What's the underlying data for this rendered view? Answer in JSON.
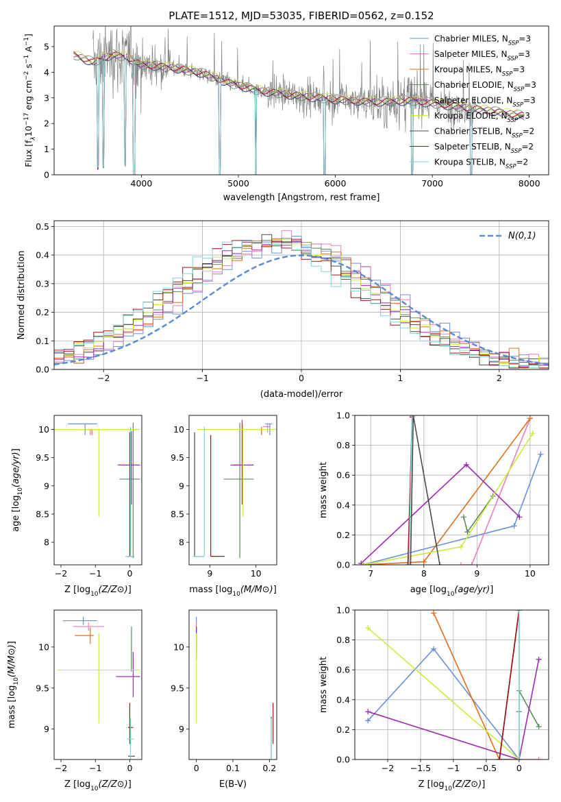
{
  "title": "PLATE=1512, MJD=53035, FIBERID=0562, z=0.152",
  "series_names": [
    "Chabrier MILES, N_SSP=3",
    "Salpeter MILES, N_SSP=3",
    "Kroupa MILES, N_SSP=3",
    "Chabrier ELODIE, N_SSP=3",
    "Salpeter ELODIE, N_SSP=3",
    "Kroupa ELODIE, N_SSP=3",
    "Chabrier STELIB, N_SSP=2",
    "Salpeter STELIB, N_SSP=2",
    "Kroupa STELIB, N_SSP=2"
  ],
  "colors": [
    "#6a8fd6",
    "#e77fbf",
    "#e06f1c",
    "#5c8a5c",
    "#9a2ab0",
    "#cdea3a",
    "#4a4a4a",
    "#a01010",
    "#7fd5d5"
  ],
  "chart_data": [
    {
      "panel": "spectrum",
      "type": "line",
      "title": "PLATE=1512, MJD=53035, FIBERID=0562, z=0.152",
      "xlabel": "wavelength [Angstrom, rest frame]",
      "ylabel": "Flux [f_λ 10^-17 erg cm^-2 s^-1 A^-1]",
      "xlim": [
        3100,
        8200
      ],
      "ylim": [
        0,
        5.8
      ],
      "xticks": [
        4000,
        5000,
        6000,
        7000,
        8000
      ],
      "yticks": [
        0,
        1,
        2,
        3,
        4,
        5
      ],
      "legend": "top-right",
      "grid": false,
      "observed_color": "#808080",
      "observed_range": [
        3500,
        7450
      ],
      "model_range": [
        3300,
        7950
      ],
      "model_continuum": [
        [
          3300,
          4.7
        ],
        [
          3500,
          4.4
        ],
        [
          3700,
          4.7
        ],
        [
          3850,
          4.6
        ],
        [
          4000,
          4.3
        ],
        [
          4300,
          4.2
        ],
        [
          4600,
          4.0
        ],
        [
          4900,
          3.6
        ],
        [
          5200,
          3.3
        ],
        [
          5600,
          3.1
        ],
        [
          6000,
          2.95
        ],
        [
          6400,
          2.85
        ],
        [
          6800,
          2.9
        ],
        [
          7200,
          2.7
        ],
        [
          7600,
          2.5
        ],
        [
          7950,
          2.3
        ]
      ],
      "absorption_features": [
        3550,
        3610,
        3830,
        3920,
        3930,
        4810,
        5180,
        5890,
        6790,
        7400
      ]
    },
    {
      "panel": "residuals",
      "type": "histogram",
      "xlabel": "(data-model)/error",
      "ylabel": "Normed distribution",
      "xlim": [
        -2.5,
        2.5
      ],
      "ylim": [
        0,
        0.52
      ],
      "xticks": [
        -2,
        -1,
        0,
        1,
        2
      ],
      "yticks": [
        0.0,
        0.1,
        0.2,
        0.3,
        0.4,
        0.5
      ],
      "grid": true,
      "legend": "top-right",
      "reference_label": "N(0,1)",
      "reference_color": "#5b8bd6",
      "bin_width": 0.1
    },
    {
      "panel": "age_vs_Z",
      "type": "errorbar",
      "xlabel": "Z [log10(Z/Z_sun)]",
      "ylabel": "age [log10(age/yr)]",
      "xlim": [
        -2.2,
        0.35
      ],
      "ylim": [
        7.6,
        10.25
      ],
      "xticks": [
        -2,
        -1,
        0
      ],
      "yticks": [
        8.0,
        8.5,
        9.0,
        9.5,
        10.0
      ],
      "points": [
        {
          "x": -1.3,
          "xerr": [
            0.5,
            0.35
          ],
          "y": 10.1,
          "yerr": [
            0.2,
            0.0
          ]
        },
        {
          "x": -1.15,
          "xerr": [
            0.3,
            0.1
          ],
          "y": 10.0,
          "yerr": [
            0.1,
            0.0
          ]
        },
        {
          "x": -1.1,
          "xerr": [
            1.2,
            1.3
          ],
          "y": 10.0,
          "yerr": [
            0.1,
            0.0
          ]
        },
        {
          "x": 0.1,
          "xerr": [
            0.4,
            0.2
          ],
          "y": 9.12,
          "yerr": [
            1.4,
            1.0
          ]
        },
        {
          "x": 0.05,
          "xerr": [
            0.4,
            0.25
          ],
          "y": 9.37,
          "yerr": [
            0.7,
            0.6
          ]
        },
        {
          "x": -0.9,
          "xerr": [
            1.3,
            1.2
          ],
          "y": 10.0,
          "yerr": [
            1.55,
            0.0
          ]
        },
        {
          "x": 0.02,
          "xerr": [
            0.1,
            0.1
          ],
          "y": 7.75,
          "yerr": [
            0.0,
            2.2
          ]
        },
        {
          "x": 0.0,
          "xerr": [
            0.05,
            0.05
          ],
          "y": 7.75,
          "yerr": [
            0.0,
            2.2
          ]
        },
        {
          "x": 0.02,
          "xerr": [
            0.15,
            0.12
          ],
          "y": 7.75,
          "yerr": [
            0.0,
            2.3
          ]
        }
      ]
    },
    {
      "panel": "age_vs_mass",
      "type": "errorbar",
      "xlabel": "mass [log10(M/M_sun)]",
      "ylabel": "",
      "xlim": [
        8.55,
        10.45
      ],
      "ylim": [
        7.6,
        10.25
      ],
      "xticks": [
        9,
        10
      ],
      "yticks": [
        8.0,
        8.5,
        9.0,
        9.5,
        10.0
      ],
      "points": [
        {
          "x": 10.3,
          "xerr": [
            0.1,
            0.05
          ],
          "y": 10.1,
          "yerr": [
            0.2,
            0.0
          ]
        },
        {
          "x": 10.25,
          "xerr": [
            0.1,
            0.05
          ],
          "y": 10.05,
          "yerr": [
            0.1,
            0.05
          ]
        },
        {
          "x": 10.12,
          "xerr": [
            0.1,
            0.05
          ],
          "y": 10.0,
          "yerr": [
            0.1,
            0.05
          ]
        },
        {
          "x": 9.65,
          "xerr": [
            0.35,
            0.3
          ],
          "y": 9.12,
          "yerr": [
            1.4,
            1.0
          ]
        },
        {
          "x": 9.7,
          "xerr": [
            0.25,
            0.25
          ],
          "y": 9.37,
          "yerr": [
            0.7,
            0.8
          ]
        },
        {
          "x": 9.72,
          "xerr": [
            1.0,
            1.0
          ],
          "y": 10.0,
          "yerr": [
            1.55,
            0.1
          ]
        },
        {
          "x": 8.67,
          "xerr": [
            0.0,
            0.2
          ],
          "y": 7.75,
          "yerr": [
            0.0,
            2.2
          ]
        },
        {
          "x": 9.02,
          "xerr": [
            0.0,
            0.3
          ],
          "y": 7.75,
          "yerr": [
            0.0,
            2.15
          ]
        },
        {
          "x": 8.88,
          "xerr": [
            0.25,
            0.0
          ],
          "y": 7.75,
          "yerr": [
            0.0,
            2.3
          ]
        }
      ]
    },
    {
      "panel": "weight_vs_age",
      "type": "line",
      "xlabel": "age [log10(age/yr)]",
      "ylabel": "mass weight",
      "xlim": [
        6.7,
        10.35
      ],
      "ylim": [
        0,
        1.0
      ],
      "xticks": [
        7,
        8,
        9,
        10
      ],
      "yticks": [
        0.0,
        0.2,
        0.4,
        0.6,
        0.8,
        1.0
      ],
      "grid": true,
      "series": [
        {
          "x": [
            6.85,
            9.7,
            10.2
          ],
          "y": [
            0.0,
            0.26,
            0.74
          ]
        },
        {
          "x": [
            8.7,
            8.9,
            10.0
          ],
          "y": [
            0.0,
            0.0,
            0.98
          ]
        },
        {
          "x": [
            6.85,
            8.0,
            10.0
          ],
          "y": [
            0.0,
            0.02,
            0.98
          ]
        },
        {
          "x": [
            8.75,
            8.82,
            9.3
          ],
          "y": [
            0.32,
            0.22,
            0.46
          ]
        },
        {
          "x": [
            6.82,
            8.8,
            9.8
          ],
          "y": [
            0.01,
            0.67,
            0.32
          ]
        },
        {
          "x": [
            6.85,
            8.7,
            10.05
          ],
          "y": [
            0.0,
            0.12,
            0.88
          ]
        },
        {
          "x": [
            7.75,
            7.8,
            8.3
          ],
          "y": [
            0.0,
            1.0,
            0.0
          ]
        },
        {
          "x": [
            7.7,
            7.78,
            7.8
          ],
          "y": [
            0.0,
            0.99,
            1.0
          ]
        },
        {
          "x": [
            7.72,
            7.78,
            7.82
          ],
          "y": [
            0.0,
            1.0,
            1.0
          ]
        }
      ]
    },
    {
      "panel": "mass_vs_Z",
      "type": "errorbar",
      "xlabel": "Z [log10(Z/Z_sun)]",
      "ylabel": "mass [log10(M/M_sun)]",
      "xlim": [
        -2.2,
        0.35
      ],
      "ylim": [
        8.63,
        10.45
      ],
      "xticks": [
        -2,
        -1,
        0
      ],
      "yticks": [
        9.0,
        9.5,
        10.0
      ],
      "points": [
        {
          "x": -1.35,
          "xerr": [
            0.6,
            0.4
          ],
          "y": 10.32,
          "yerr": [
            0.05,
            0.05
          ]
        },
        {
          "x": -1.2,
          "xerr": [
            0.45,
            0.45
          ],
          "y": 10.25,
          "yerr": [
            0.05,
            0.05
          ]
        },
        {
          "x": -1.15,
          "xerr": [
            0.45,
            0.1
          ],
          "y": 10.14,
          "yerr": [
            0.1,
            0.1
          ]
        },
        {
          "x": 0.05,
          "xerr": [
            0.0,
            0.0
          ],
          "y": 10.0,
          "yerr": [
            0.3,
            0.25
          ]
        },
        {
          "x": 0.1,
          "xerr": [
            0.5,
            0.2
          ],
          "y": 9.64,
          "yerr": [
            0.25,
            0.3
          ]
        },
        {
          "x": -0.9,
          "xerr": [
            1.2,
            1.2
          ],
          "y": 9.72,
          "yerr": [
            0.65,
            0.45
          ]
        },
        {
          "x": 0.05,
          "xerr": [
            0.1,
            0.1
          ],
          "y": 8.67,
          "yerr": [
            0.0,
            0.0
          ]
        },
        {
          "x": 0.0,
          "xerr": [
            0.05,
            0.1
          ],
          "y": 9.02,
          "yerr": [
            0.2,
            0.3
          ]
        },
        {
          "x": 0.02,
          "xerr": [
            0.1,
            0.1
          ],
          "y": 8.88,
          "yerr": [
            0.25,
            0.25
          ]
        }
      ]
    },
    {
      "panel": "mass_vs_ebv",
      "type": "errorbar",
      "xlabel": "E(B-V)",
      "ylabel": "",
      "xlim": [
        -0.02,
        0.22
      ],
      "ylim": [
        8.63,
        10.45
      ],
      "xticks": [
        0.0,
        0.1,
        0.2
      ],
      "yticks": [
        9.0,
        9.5,
        10.0
      ],
      "points": [
        {
          "x": 0.0,
          "xerr": [
            0,
            0
          ],
          "y": 10.32,
          "yerr": [
            0.05,
            0.05
          ]
        },
        {
          "x": 0.0,
          "xerr": [
            0,
            0
          ],
          "y": 10.25,
          "yerr": [
            0.05,
            0.05
          ]
        },
        {
          "x": 0.0,
          "xerr": [
            0,
            0
          ],
          "y": 10.14,
          "yerr": [
            0.1,
            0.1
          ]
        },
        {
          "x": 0.0,
          "xerr": [
            0,
            0
          ],
          "y": 10.1,
          "yerr": [
            0.15,
            0.15
          ]
        },
        {
          "x": 0.0,
          "xerr": [
            0,
            0
          ],
          "y": 10.05,
          "yerr": [
            0.2,
            0.2
          ]
        },
        {
          "x": 0.0,
          "xerr": [
            0,
            0
          ],
          "y": 9.72,
          "yerr": [
            0.65,
            0.45
          ]
        },
        {
          "x": 0.205,
          "xerr": [
            0,
            0
          ],
          "y": 8.85,
          "yerr": [
            0.2,
            0.3
          ]
        },
        {
          "x": 0.21,
          "xerr": [
            0,
            0
          ],
          "y": 9.02,
          "yerr": [
            0.2,
            0.3
          ]
        },
        {
          "x": 0.205,
          "xerr": [
            0,
            0
          ],
          "y": 8.88,
          "yerr": [
            0.25,
            0.25
          ]
        }
      ]
    },
    {
      "panel": "weight_vs_Z",
      "type": "line",
      "xlabel": "Z [log10(Z/Z_sun)]",
      "ylabel": "mass weight",
      "xlim": [
        -2.5,
        0.45
      ],
      "ylim": [
        0,
        1.0
      ],
      "xticks": [
        -2.0,
        -1.5,
        -1.0,
        -0.5,
        0.0
      ],
      "yticks": [
        0.0,
        0.2,
        0.4,
        0.6,
        0.8,
        1.0
      ],
      "grid": true,
      "series": [
        {
          "x": [
            -2.3,
            -1.3,
            0.0
          ],
          "y": [
            0.26,
            0.74,
            0.0
          ]
        },
        {
          "x": [
            -0.3,
            0.0,
            0.3
          ],
          "y": [
            0.0,
            0.0,
            0.0
          ]
        },
        {
          "x": [
            -1.3,
            -0.3,
            0.0
          ],
          "y": [
            0.98,
            0.0,
            0.0
          ]
        },
        {
          "x": [
            0.0,
            0.0,
            0.3
          ],
          "y": [
            0.32,
            0.46,
            0.22
          ]
        },
        {
          "x": [
            -2.3,
            0.0,
            0.3
          ],
          "y": [
            0.32,
            0.0,
            0.67
          ]
        },
        {
          "x": [
            -2.3,
            0.0,
            0.0
          ],
          "y": [
            0.88,
            0.0,
            0.0
          ]
        },
        {
          "x": [
            -0.3,
            0.0,
            0.0
          ],
          "y": [
            0.0,
            1.0,
            0.0
          ]
        },
        {
          "x": [
            -0.3,
            0.0,
            0.0
          ],
          "y": [
            0.0,
            1.0,
            1.0
          ]
        },
        {
          "x": [
            0.0,
            0.0,
            0.0
          ],
          "y": [
            0.0,
            1.0,
            1.0
          ]
        }
      ]
    }
  ]
}
